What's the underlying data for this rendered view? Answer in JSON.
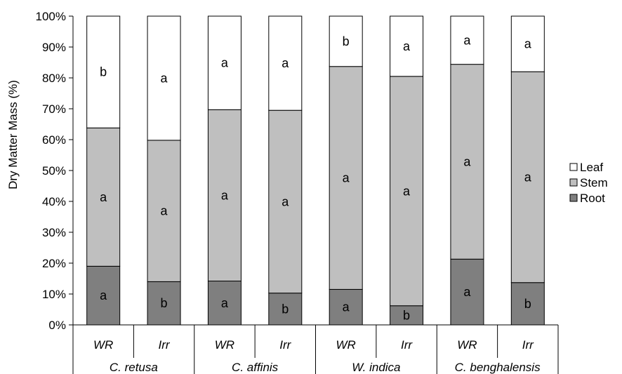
{
  "chart_data": {
    "type": "bar",
    "stacked": true,
    "ylabel": "Dry Matter Mass (%)",
    "ylim": [
      0,
      100
    ],
    "yticks": [
      0,
      10,
      20,
      30,
      40,
      50,
      60,
      70,
      80,
      90,
      100
    ],
    "ytick_suffix": "%",
    "grid": false,
    "legend_position": "right",
    "groups": [
      {
        "label": "C. retusa",
        "treatments": [
          "WR",
          "Irr"
        ]
      },
      {
        "label": "C. affinis",
        "treatments": [
          "WR",
          "Irr"
        ]
      },
      {
        "label": "W. indica",
        "treatments": [
          "WR",
          "Irr"
        ]
      },
      {
        "label": "C. benghalensis",
        "treatments": [
          "WR",
          "Irr"
        ]
      }
    ],
    "series": [
      {
        "name": "Root",
        "color": "#7f7f7f",
        "values": [
          19,
          14,
          14.2,
          10.3,
          11.5,
          6.2,
          21.3,
          13.7
        ],
        "letters": [
          "a",
          "b",
          "a",
          "b",
          "a",
          "b",
          "a",
          "b"
        ]
      },
      {
        "name": "Stem",
        "color": "#bfbfbf",
        "values": [
          44.8,
          45.8,
          55.5,
          59.2,
          72.2,
          74.3,
          63.1,
          68.3
        ],
        "letters": [
          "a",
          "a",
          "a",
          "a",
          "a",
          "a",
          "a",
          "a"
        ]
      },
      {
        "name": "Leaf",
        "color": "#ffffff",
        "values": [
          36.2,
          40.2,
          30.3,
          30.5,
          16.3,
          19.5,
          15.6,
          18
        ],
        "letters": [
          "b",
          "a",
          "a",
          "a",
          "b",
          "a",
          "a",
          "a"
        ]
      }
    ],
    "legend_order": [
      "Leaf",
      "Stem",
      "Root"
    ]
  }
}
